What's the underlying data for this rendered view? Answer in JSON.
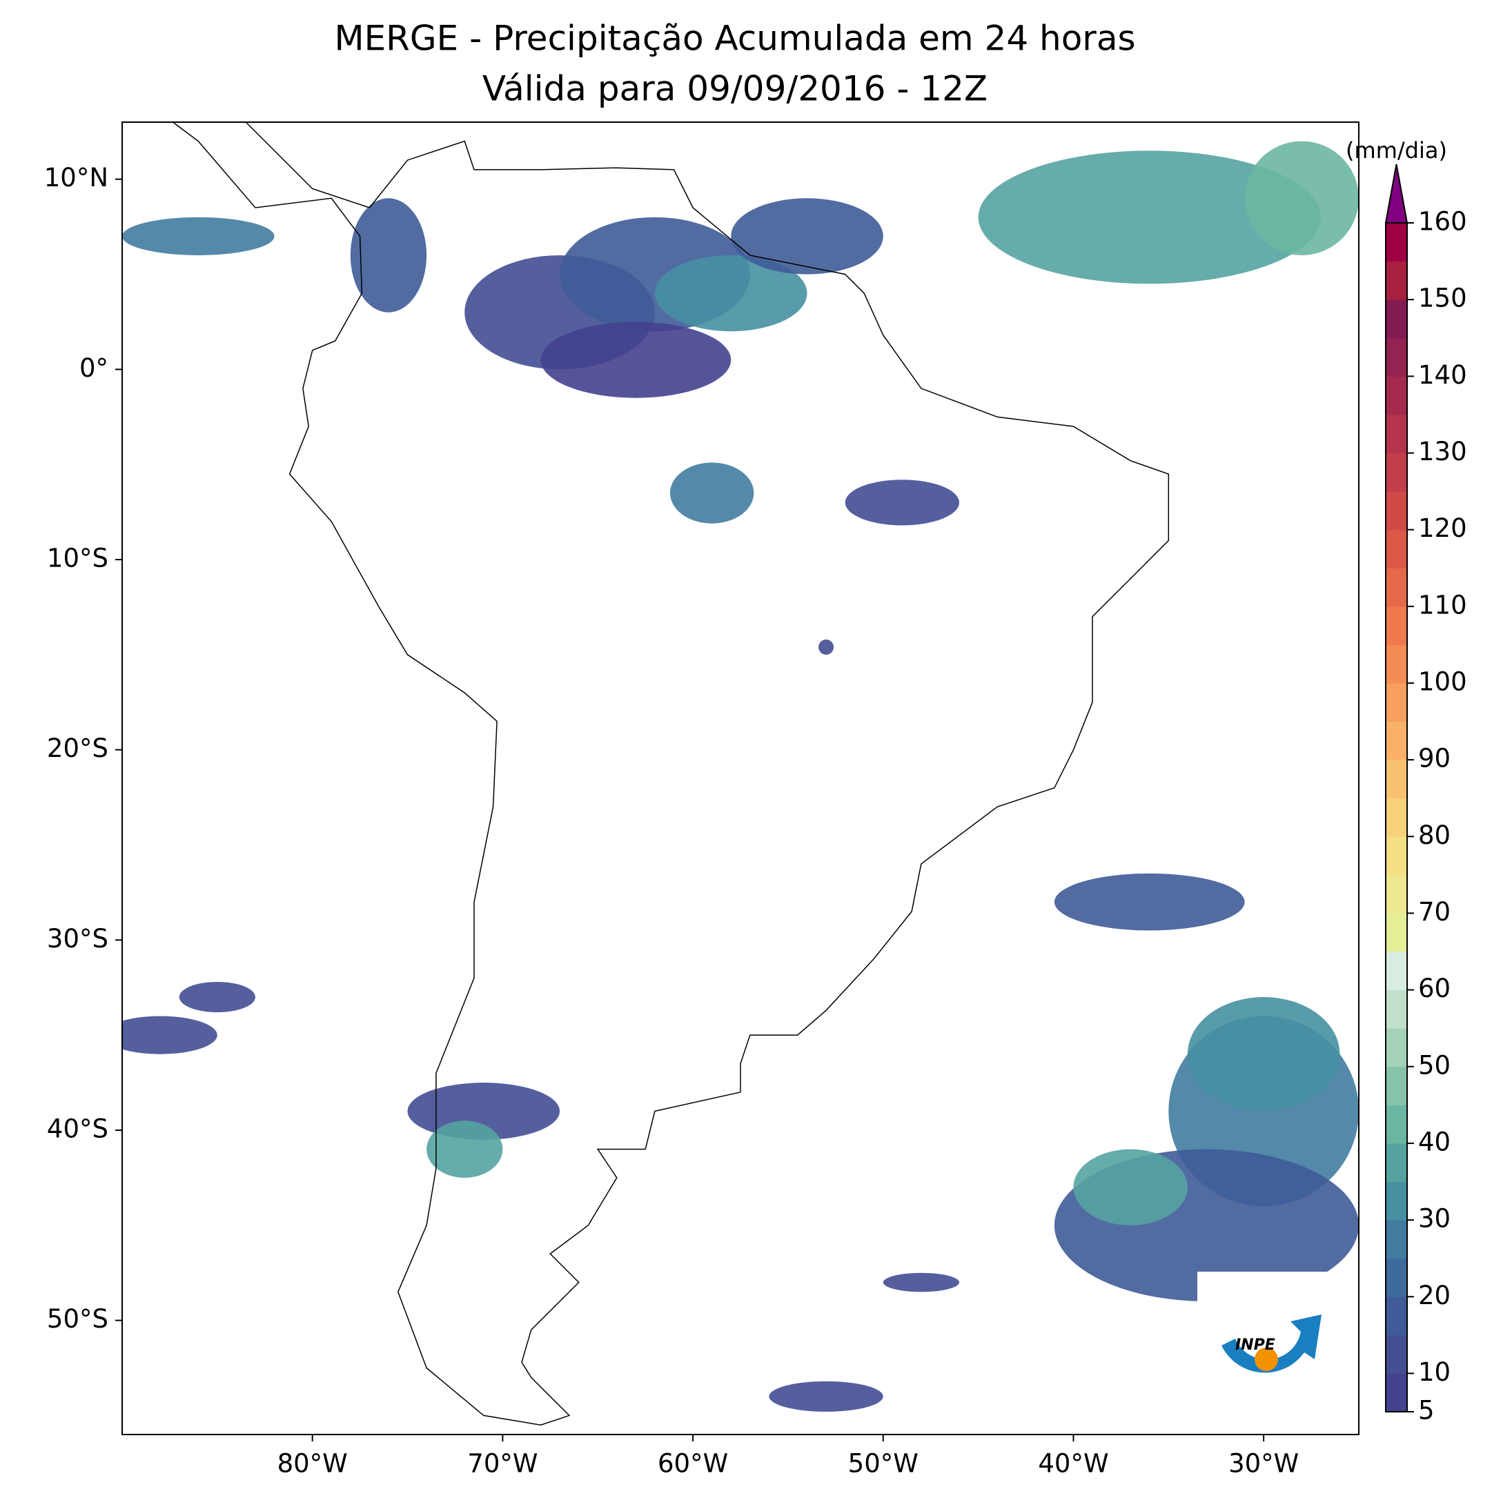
{
  "chart_data": {
    "type": "map",
    "title": "MERGE - Precipitação Acumulada em 24 horas",
    "subtitle": "Válida para 09/09/2016 - 12Z",
    "xlim": [
      -90,
      -25
    ],
    "ylim": [
      -56,
      13
    ],
    "xticks": [
      {
        "value": -80,
        "label": "80°W"
      },
      {
        "value": -70,
        "label": "70°W"
      },
      {
        "value": -60,
        "label": "60°W"
      },
      {
        "value": -50,
        "label": "50°W"
      },
      {
        "value": -40,
        "label": "40°W"
      },
      {
        "value": -30,
        "label": "30°W"
      }
    ],
    "yticks": [
      {
        "value": 10,
        "label": "10°N"
      },
      {
        "value": 0,
        "label": "0°"
      },
      {
        "value": -10,
        "label": "10°S"
      },
      {
        "value": -20,
        "label": "20°S"
      },
      {
        "value": -30,
        "label": "30°S"
      },
      {
        "value": -40,
        "label": "40°S"
      },
      {
        "value": -50,
        "label": "50°S"
      }
    ],
    "colorbar": {
      "label": "(mm/dia)",
      "lim": [
        5,
        160
      ],
      "ticks": [
        5,
        10,
        20,
        30,
        40,
        50,
        60,
        70,
        80,
        90,
        100,
        110,
        120,
        130,
        140,
        150,
        160
      ],
      "colors": [
        "#44418e",
        "#434e93",
        "#3f5c98",
        "#3e6b9c",
        "#417ca0",
        "#4690a2",
        "#55a3a1",
        "#6bb6a2",
        "#86c4aa",
        "#a3d2b8",
        "#c0e0cc",
        "#d9ece0",
        "#e5ef98",
        "#eee98e",
        "#f5df84",
        "#f8d17a",
        "#f9c270",
        "#f9b167",
        "#f79f5d",
        "#f48c54",
        "#ee7a4e",
        "#e6694a",
        "#dc5948",
        "#d04a48",
        "#c23e4a",
        "#b3344c",
        "#a42b4e",
        "#932350",
        "#831c52",
        "#a8203f",
        "#9e0142"
      ],
      "extend_color": "#800080"
    },
    "logo_text": "INPE"
  }
}
